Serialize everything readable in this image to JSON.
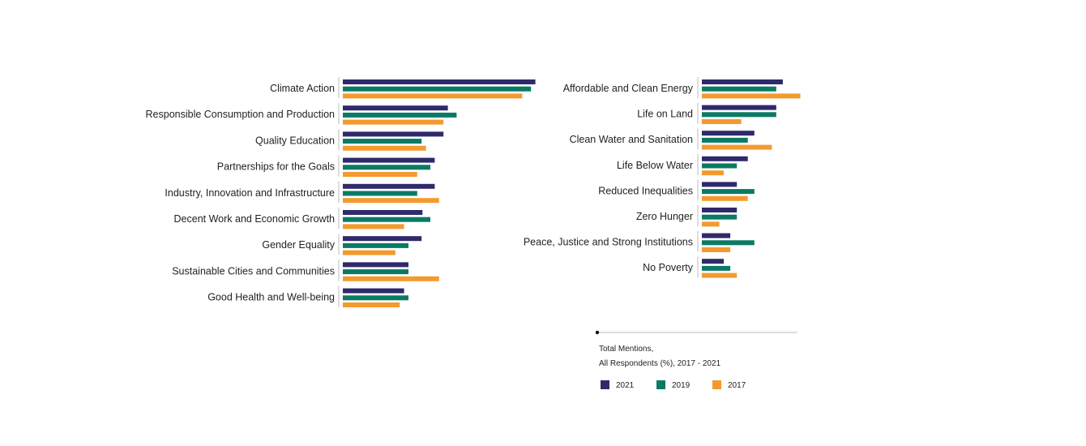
{
  "colors": {
    "2021": "#2e2a6b",
    "2019": "#0b7a65",
    "2017": "#f39a2f"
  },
  "note": {
    "line1": "Total Mentions,",
    "line2": "All Respondents (%), 2017 - 2021"
  },
  "legend": [
    {
      "key": "2021",
      "label": "2021"
    },
    {
      "key": "2019",
      "label": "2019"
    },
    {
      "key": "2017",
      "label": "2017"
    }
  ],
  "chart_data": [
    {
      "type": "bar",
      "orientation": "horizontal",
      "series_names": [
        "2021",
        "2019",
        "2017"
      ],
      "categories": [
        "Climate Action",
        "Responsible Consumption and Production",
        "Quality Education",
        "Partnerships for the Goals",
        "Industry, Innovation and Infrastructure",
        "Decent Work and Economic Growth",
        "Gender Equality",
        "Sustainable Cities and Communities",
        "Good Health and Well-being"
      ],
      "values": {
        "2021": [
          44,
          24,
          23,
          21,
          21,
          18.2,
          18,
          15,
          14
        ],
        "2019": [
          43,
          26,
          18,
          20,
          17,
          20,
          15,
          15,
          15
        ],
        "2017": [
          41,
          23,
          19,
          17,
          22,
          14,
          12,
          22,
          13
        ]
      },
      "xlim": [
        0,
        50
      ]
    },
    {
      "type": "bar",
      "orientation": "horizontal",
      "series_names": [
        "2021",
        "2019",
        "2017"
      ],
      "categories": [
        "Affordable and Clean Energy",
        "Life on Land",
        "Clean Water and Sanitation",
        "Life Below Water",
        "Reduced Inequalities",
        "Zero Hunger",
        "Peace, Justice and Strong Institutions",
        "No Poverty"
      ],
      "values": {
        "2021": [
          18.5,
          17,
          12,
          10.5,
          8,
          8,
          6.5,
          5
        ],
        "2019": [
          17,
          17,
          10.5,
          8,
          12,
          8,
          12,
          6.5
        ],
        "2017": [
          22.5,
          9,
          16,
          5,
          10.5,
          4,
          6.5,
          8
        ]
      },
      "xlim": [
        0,
        50
      ]
    }
  ]
}
